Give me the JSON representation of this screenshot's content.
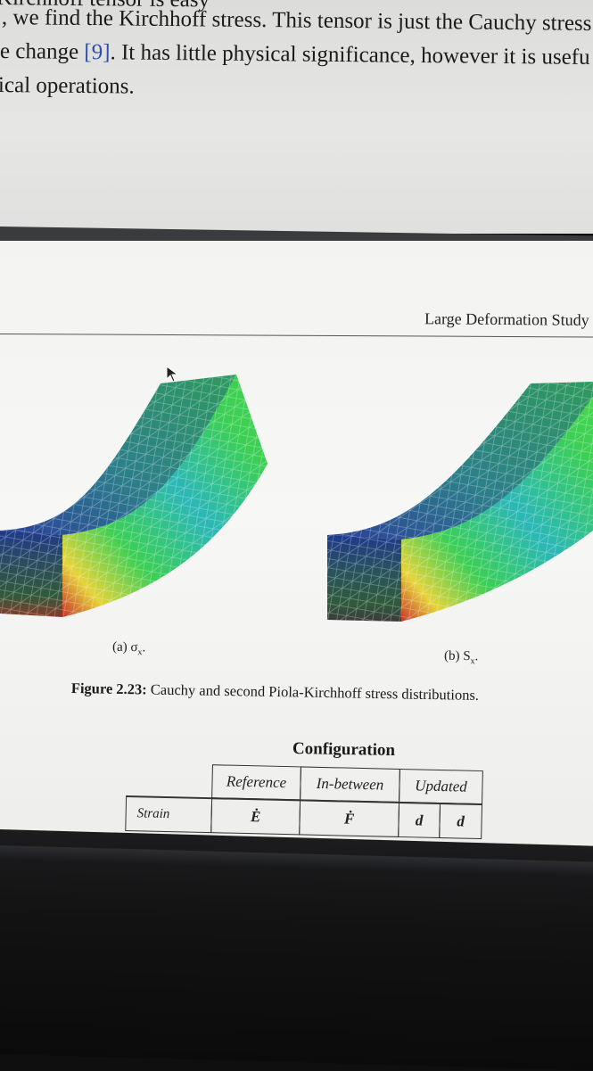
{
  "text_lines": [
    {
      "text": "Kirchhoff tensor is easy",
      "cite": ""
    },
    {
      "text": ", we find the Kirchhoff stress.  This tensor is just the Cauchy stress",
      "cite": ""
    },
    {
      "text": "e change ",
      "cite": "[9]",
      "after": ".  It has little physical significance, however it is usefu"
    },
    {
      "text": "ical operations.",
      "cite": ""
    }
  ],
  "page_header": "Large Deformation Study",
  "subfigures": [
    {
      "label": "(a) σ",
      "sub": "x",
      "tail": "."
    },
    {
      "label": "(b) S",
      "sub": "x",
      "tail": "."
    }
  ],
  "figure_caption": {
    "label": "Figure 2.23:",
    "text": " Cauchy and second Piola-Kirchhoff stress distributions."
  },
  "table": {
    "title": "Configuration",
    "columns": [
      "Reference",
      "In-between",
      "Updated"
    ],
    "row_label": "Strain",
    "row_symbols": [
      "Ė",
      "Ḟ",
      "d",
      "d"
    ]
  },
  "colors": {
    "beam_top_green": "#2f9a5e",
    "beam_blue": "#2a3f9a",
    "beam_bright_green": "#3ccf55",
    "beam_red": "#c8342a",
    "beam_yellow": "#e6d43a"
  },
  "icons": [
    "mouse-cursor-icon"
  ]
}
